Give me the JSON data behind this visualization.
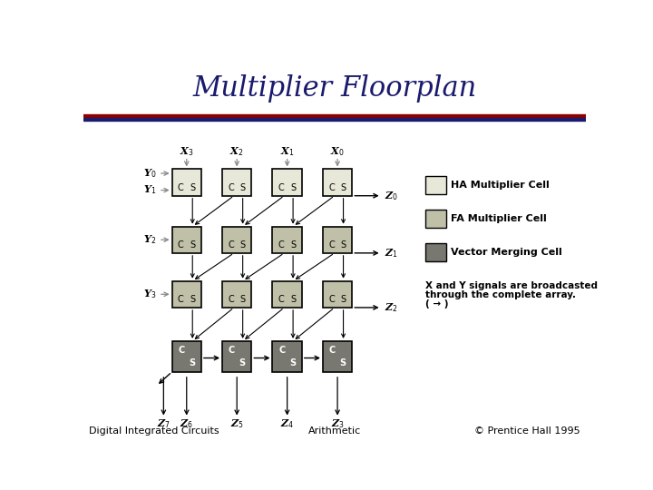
{
  "title": "Multiplier Floorplan",
  "title_color": "#1a1a6e",
  "title_fontsize": 22,
  "footer_left": "Digital Integrated Circuits",
  "footer_center": "Arithmetic",
  "footer_right": "© Prentice Hall 1995",
  "footer_fontsize": 8,
  "stripe1_color": "#8b0000",
  "stripe2_color": "#1a1a6e",
  "bg_color": "#ffffff",
  "ha_cell_color": "#e8e8d8",
  "fa_cell_color": "#c0c0a8",
  "vm_cell_color": "#787870",
  "arrow_color": "#555555",
  "arrow_color_dark": "#000000",
  "legend_ha_label": "HA Multiplier Cell",
  "legend_fa_label": "FA Multiplier Cell",
  "legend_vm_label": "Vector Merging Cell",
  "legend_note_line1": "X and Y signals are broadcasted",
  "legend_note_line2": "through the complete array.",
  "legend_note_line3": "( → )"
}
